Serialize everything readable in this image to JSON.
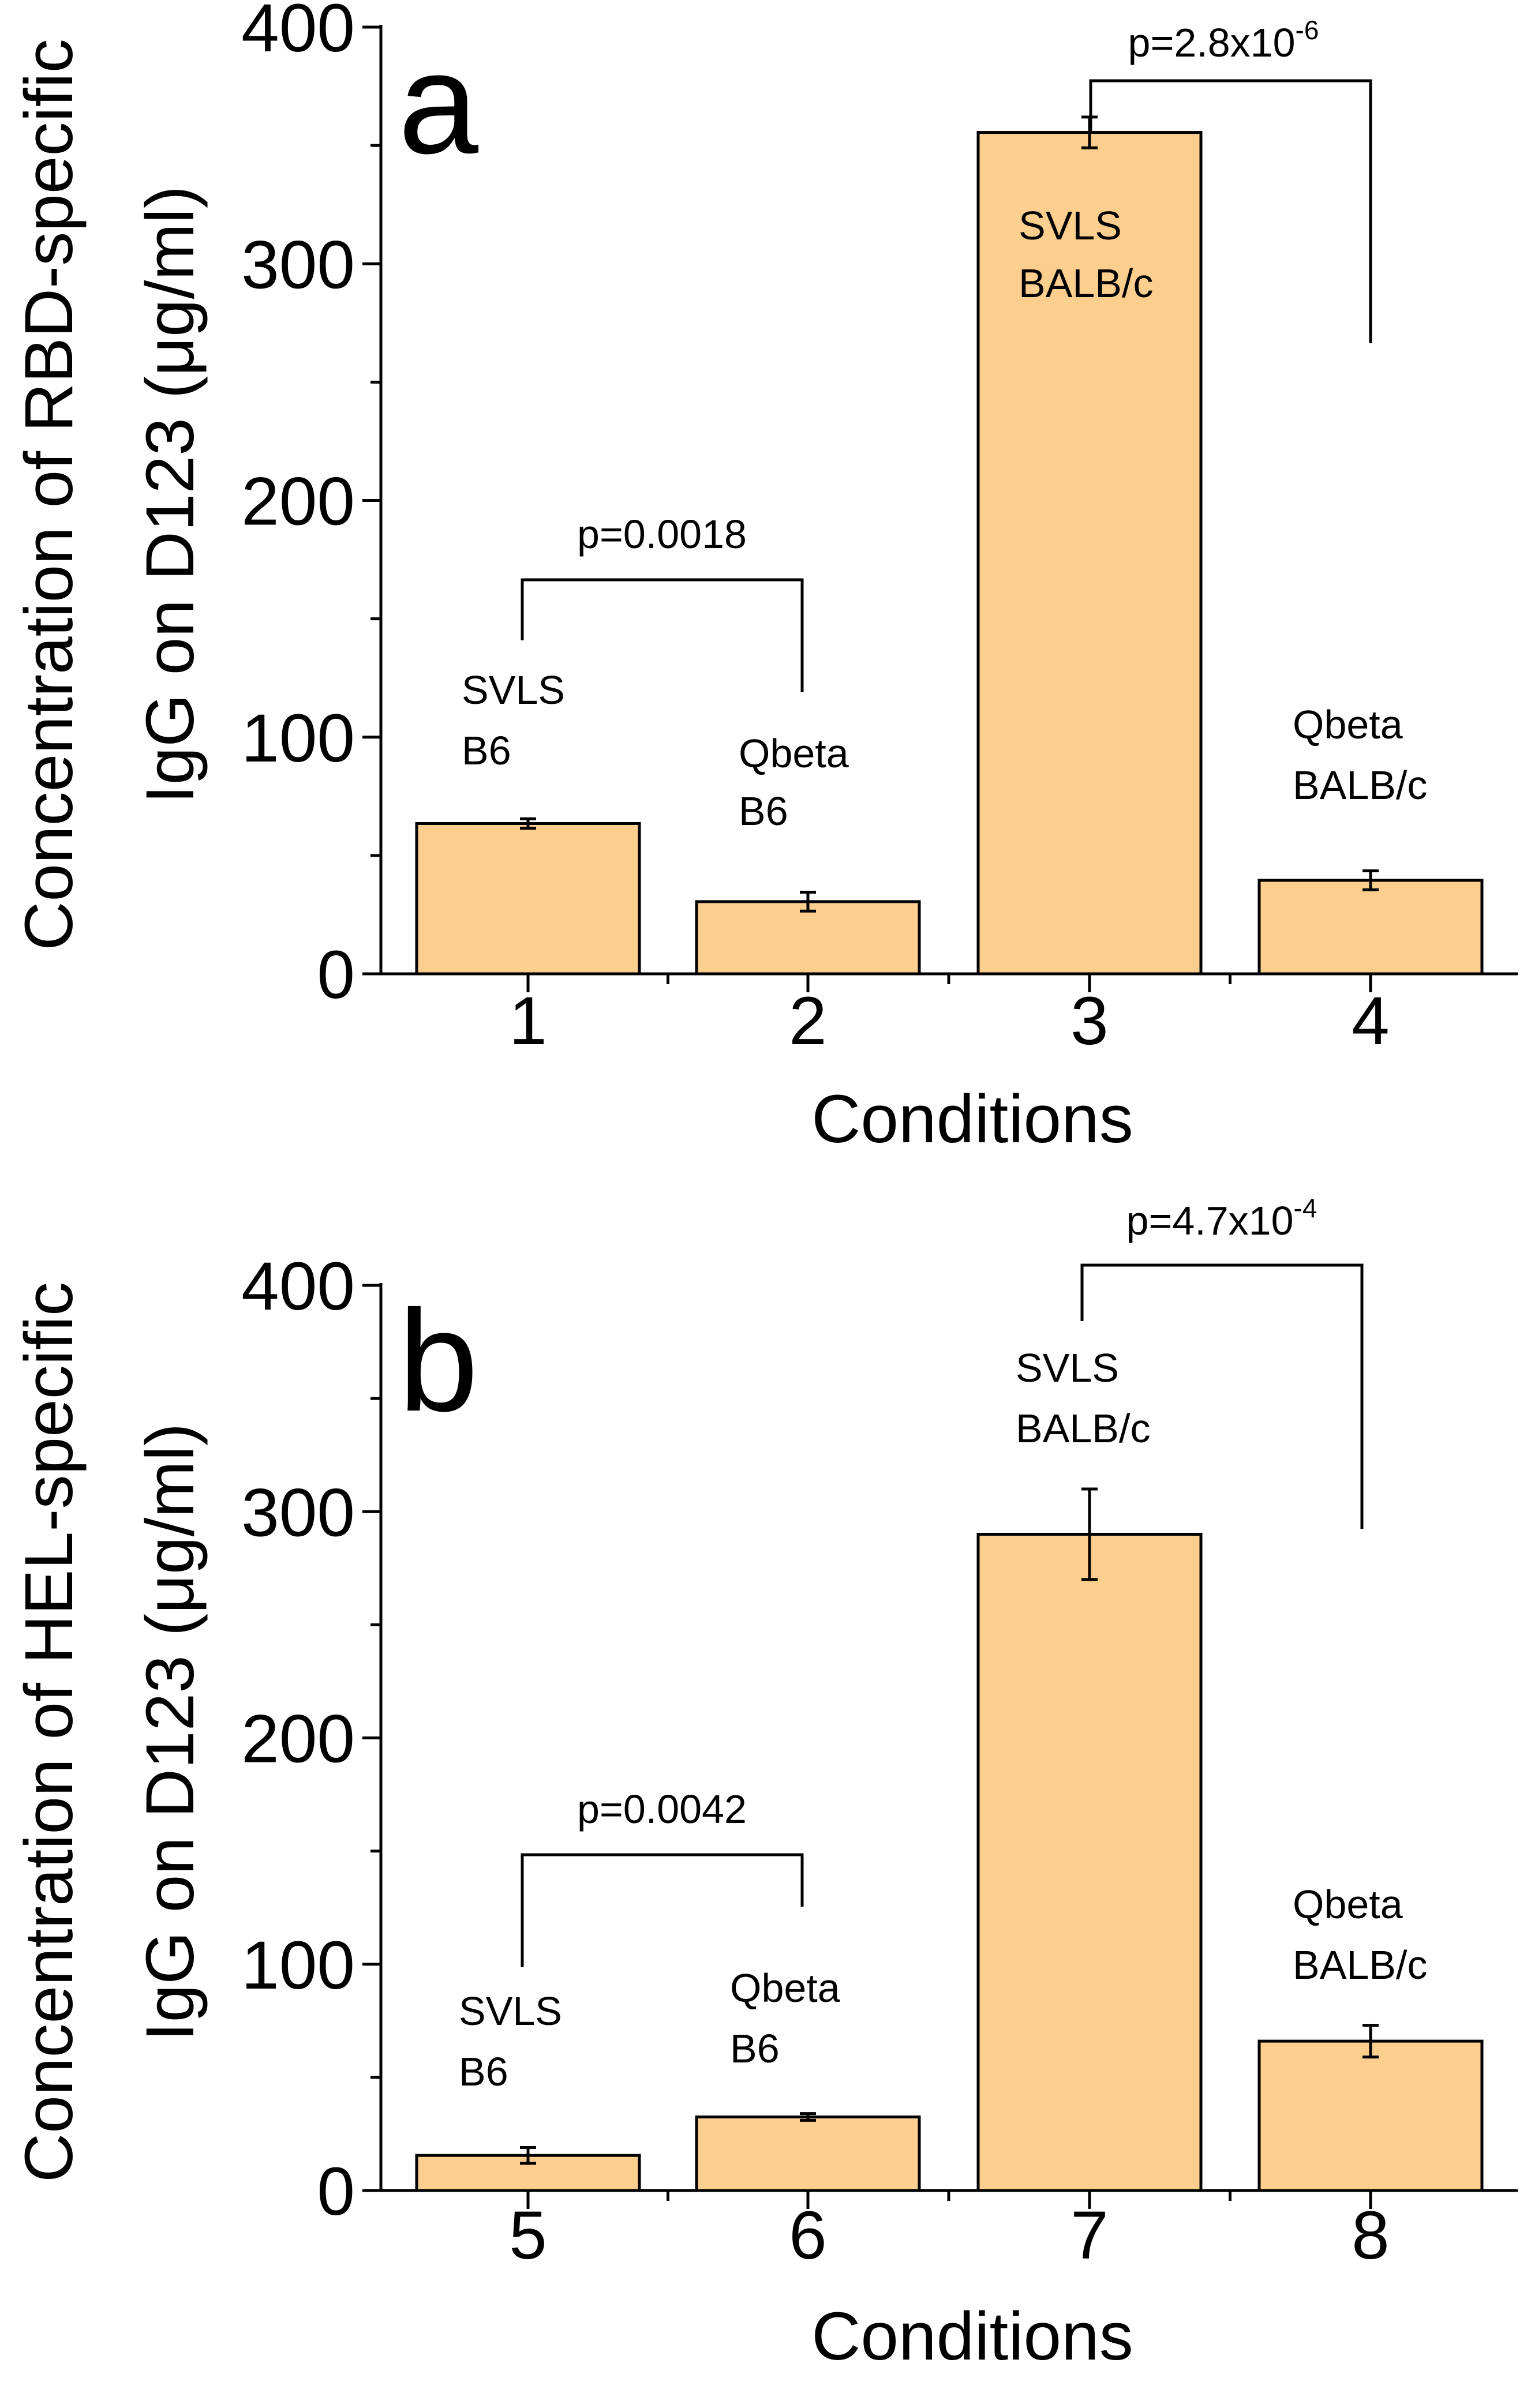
{
  "chart_data": [
    {
      "type": "bar",
      "panel": "a",
      "categories": [
        "1",
        "2",
        "3",
        "4"
      ],
      "values": [
        63.5,
        30.5,
        355.5,
        39.5
      ],
      "errors": [
        2,
        4,
        6.5,
        4
      ],
      "bar_labels": [
        [
          "SVLS",
          "B6"
        ],
        [
          "Qbeta",
          "B6"
        ],
        [
          "SVLS",
          "BALB/c"
        ],
        [
          "Qbeta",
          "BALB/c"
        ]
      ],
      "xlabel": "Conditions",
      "ylabel_lines": [
        "Concentration of RBD-specific",
        "IgG on D123 (μg/ml)"
      ],
      "ylim": [
        0,
        400
      ],
      "yticks": [
        "0",
        "100",
        "200",
        "300",
        "400"
      ],
      "significance": [
        {
          "from": "1",
          "to": "2",
          "label": "p=0.0018"
        },
        {
          "from": "3",
          "to": "4",
          "label_base": "p=2.8x10",
          "label_exp": "-6"
        }
      ],
      "bar_color": "#fccf8e"
    },
    {
      "type": "bar",
      "panel": "b",
      "categories": [
        "5",
        "6",
        "7",
        "8"
      ],
      "values": [
        15.5,
        32.5,
        290,
        66
      ],
      "errors": [
        3.5,
        1.5,
        20,
        7
      ],
      "bar_labels": [
        [
          "SVLS",
          "B6"
        ],
        [
          "Qbeta",
          "B6"
        ],
        [
          "SVLS",
          "BALB/c"
        ],
        [
          "Qbeta",
          "BALB/c"
        ]
      ],
      "xlabel": "Conditions",
      "ylabel_lines": [
        "Concentration of HEL-specific",
        "IgG on D123 (μg/ml)"
      ],
      "ylim": [
        0,
        400
      ],
      "yticks": [
        "0",
        "100",
        "200",
        "300",
        "400"
      ],
      "significance": [
        {
          "from": "5",
          "to": "6",
          "label": "p=0.0042"
        },
        {
          "from": "7",
          "to": "8",
          "label_base": "p=4.7x10",
          "label_exp": "-4"
        }
      ],
      "bar_color": "#fccf8e"
    }
  ]
}
